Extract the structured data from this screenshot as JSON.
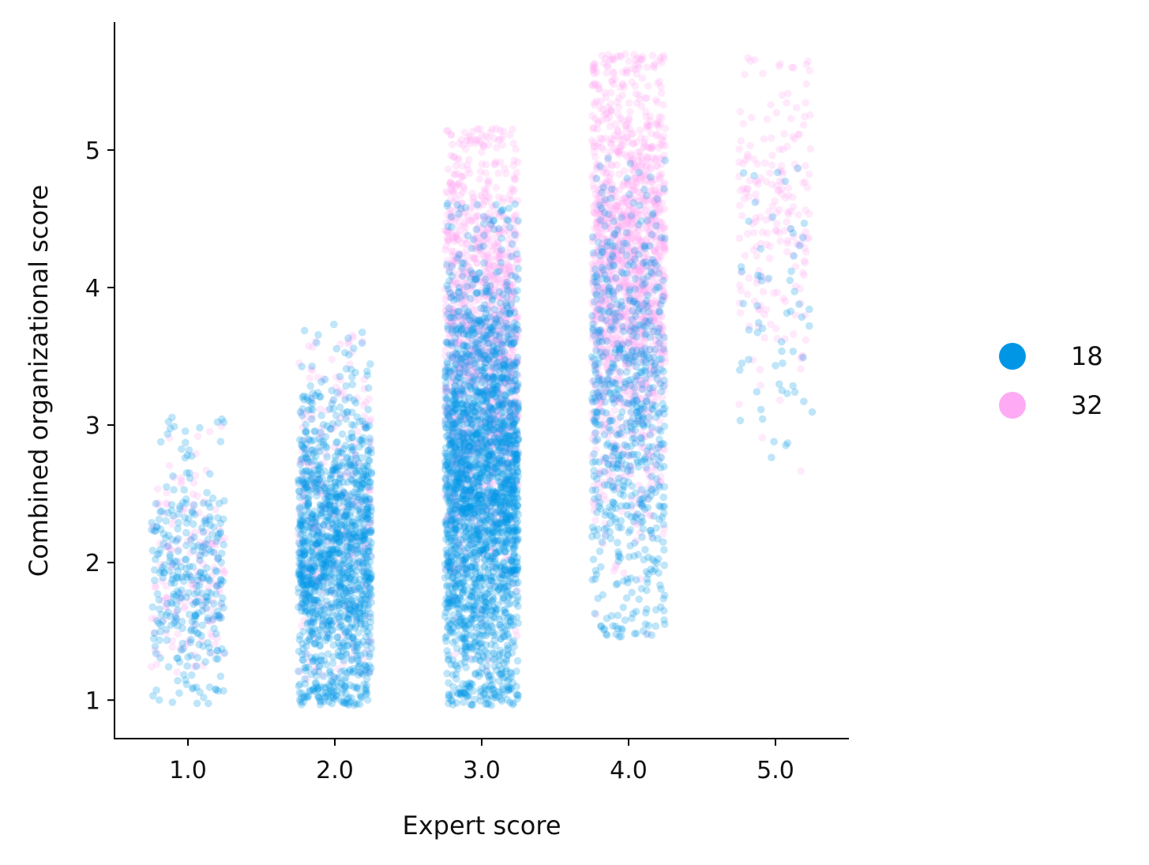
{
  "chart_data": {
    "type": "scatter",
    "subtype": "strip plot (jittered categorical scatter)",
    "title": "",
    "xlabel": "Expert score",
    "ylabel": "Combined organizational score",
    "x_ticks": [
      "1.0",
      "2.0",
      "3.0",
      "4.0",
      "5.0"
    ],
    "y_ticks": [
      "1",
      "2",
      "3",
      "4",
      "5"
    ],
    "xlim": [
      0.5,
      5.5
    ],
    "ylim": [
      0.72,
      5.93
    ],
    "grid": false,
    "legend": {
      "placement": "right",
      "title": ""
    },
    "categories": [
      1.0,
      2.0,
      3.0,
      4.0,
      5.0
    ],
    "jitter_width": 0.25,
    "point_alpha": 0.25,
    "series": [
      {
        "name": "18",
        "color": "#0096e6",
        "groups": [
          {
            "x": 1.0,
            "approx_n": 320,
            "y_center": 1.85,
            "y_range": [
              0.97,
              3.07
            ]
          },
          {
            "x": 2.0,
            "approx_n": 1400,
            "y_center": 2.05,
            "y_range": [
              0.96,
              3.74
            ]
          },
          {
            "x": 3.0,
            "approx_n": 2400,
            "y_center": 2.55,
            "y_range": [
              0.96,
              4.62
            ]
          },
          {
            "x": 4.0,
            "approx_n": 700,
            "y_center": 3.15,
            "y_range": [
              1.45,
              4.94
            ]
          },
          {
            "x": 5.0,
            "approx_n": 60,
            "y_center": 3.8,
            "y_range": [
              1.78,
              4.94
            ]
          }
        ]
      },
      {
        "name": "32",
        "color": "#ffaaf5",
        "groups": [
          {
            "x": 1.0,
            "approx_n": 150,
            "y_center": 2.0,
            "y_range": [
              1.2,
              3.0
            ]
          },
          {
            "x": 2.0,
            "approx_n": 250,
            "y_center": 2.4,
            "y_range": [
              1.15,
              3.72
            ]
          },
          {
            "x": 3.0,
            "approx_n": 1300,
            "y_center": 3.6,
            "y_range": [
              1.1,
              5.16
            ]
          },
          {
            "x": 4.0,
            "approx_n": 1500,
            "y_center": 4.1,
            "y_range": [
              1.3,
              5.7
            ]
          },
          {
            "x": 5.0,
            "approx_n": 200,
            "y_center": 4.55,
            "y_range": [
              1.87,
              5.68
            ]
          }
        ]
      }
    ]
  }
}
